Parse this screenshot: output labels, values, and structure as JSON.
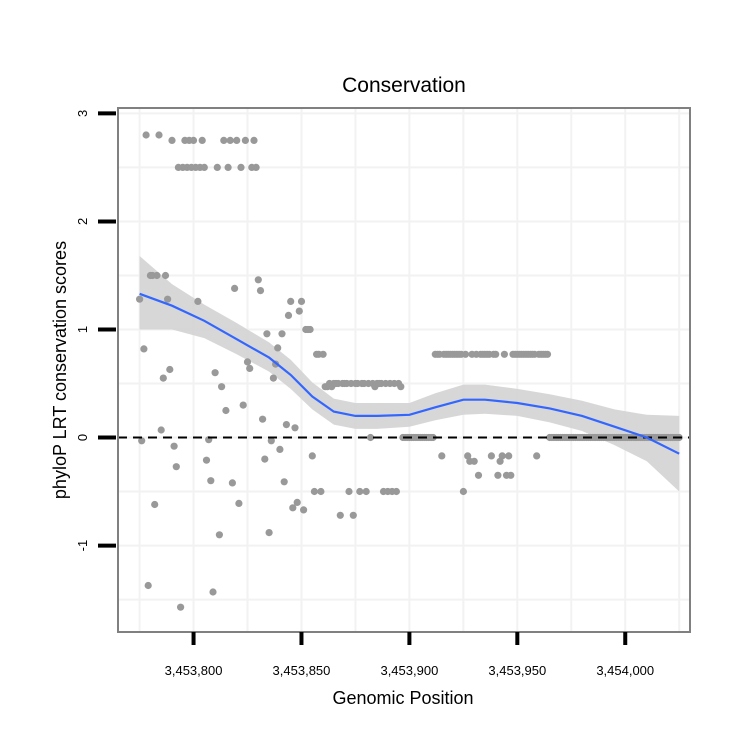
{
  "chart_data": {
    "type": "scatter",
    "title": "Conservation",
    "xlabel": "Genomic Position",
    "ylabel": "phyloP LRT conservation scores",
    "xlim": [
      3453765,
      3454030
    ],
    "ylim": [
      -1.8,
      3.05
    ],
    "x_ticks": [
      3453800,
      3453850,
      3453900,
      3453950,
      3454000
    ],
    "x_tick_labels": [
      "3,453,800",
      "3,453,850",
      "3,453,900",
      "3,453,950",
      "3,454,000"
    ],
    "y_ticks": [
      -1,
      0,
      1,
      2,
      3
    ],
    "y_tick_labels": [
      "-1",
      "0",
      "1",
      "2",
      "3"
    ],
    "reference_line": {
      "y": 0,
      "style": "dashed"
    },
    "colors": {
      "points": "#999999",
      "smooth": "#3366ff",
      "band": "#d3d3d3",
      "frame": "#808080",
      "grid": "#f2f2f2"
    },
    "points": [
      [
        3453775,
        1.28
      ],
      [
        3453776,
        -0.03
      ],
      [
        3453777,
        0.82
      ],
      [
        3453778,
        2.8
      ],
      [
        3453779,
        -1.37
      ],
      [
        3453780,
        1.5
      ],
      [
        3453781,
        1.5
      ],
      [
        3453782,
        -0.62
      ],
      [
        3453783,
        1.5
      ],
      [
        3453784,
        2.8
      ],
      [
        3453785,
        0.07
      ],
      [
        3453786,
        0.55
      ],
      [
        3453787,
        1.5
      ],
      [
        3453788,
        1.28
      ],
      [
        3453789,
        0.63
      ],
      [
        3453790,
        2.75
      ],
      [
        3453791,
        -0.08
      ],
      [
        3453792,
        -0.27
      ],
      [
        3453793,
        2.5
      ],
      [
        3453794,
        -1.57
      ],
      [
        3453795,
        2.5
      ],
      [
        3453796,
        2.75
      ],
      [
        3453797,
        2.5
      ],
      [
        3453798,
        2.75
      ],
      [
        3453799,
        2.5
      ],
      [
        3453800,
        2.75
      ],
      [
        3453801,
        2.5
      ],
      [
        3453802,
        1.26
      ],
      [
        3453803,
        2.5
      ],
      [
        3453804,
        2.75
      ],
      [
        3453805,
        2.5
      ],
      [
        3453806,
        -0.21
      ],
      [
        3453807,
        -0.02
      ],
      [
        3453808,
        -0.4
      ],
      [
        3453809,
        -1.43
      ],
      [
        3453810,
        0.6
      ],
      [
        3453811,
        2.5
      ],
      [
        3453812,
        -0.9
      ],
      [
        3453813,
        0.47
      ],
      [
        3453814,
        2.75
      ],
      [
        3453815,
        0.25
      ],
      [
        3453816,
        2.5
      ],
      [
        3453817,
        2.75
      ],
      [
        3453818,
        -0.42
      ],
      [
        3453819,
        1.38
      ],
      [
        3453820,
        2.75
      ],
      [
        3453821,
        -0.61
      ],
      [
        3453822,
        2.5
      ],
      [
        3453823,
        0.3
      ],
      [
        3453824,
        2.75
      ],
      [
        3453825,
        0.7
      ],
      [
        3453826,
        0.64
      ],
      [
        3453827,
        2.5
      ],
      [
        3453828,
        2.75
      ],
      [
        3453829,
        2.5
      ],
      [
        3453830,
        1.46
      ],
      [
        3453831,
        1.36
      ],
      [
        3453832,
        0.17
      ],
      [
        3453833,
        -0.2
      ],
      [
        3453834,
        0.96
      ],
      [
        3453835,
        -0.88
      ],
      [
        3453836,
        -0.03
      ],
      [
        3453837,
        0.55
      ],
      [
        3453838,
        0.68
      ],
      [
        3453839,
        0.83
      ],
      [
        3453840,
        -0.11
      ],
      [
        3453841,
        0.96
      ],
      [
        3453842,
        -0.41
      ],
      [
        3453843,
        0.12
      ],
      [
        3453844,
        1.13
      ],
      [
        3453845,
        1.26
      ],
      [
        3453846,
        -0.65
      ],
      [
        3453847,
        0.09
      ],
      [
        3453848,
        -0.6
      ],
      [
        3453849,
        1.17
      ],
      [
        3453850,
        1.26
      ],
      [
        3453851,
        -0.67
      ],
      [
        3453852,
        1.0
      ],
      [
        3453853,
        1.0
      ],
      [
        3453854,
        1.0
      ],
      [
        3453855,
        -0.17
      ],
      [
        3453856,
        -0.5
      ],
      [
        3453857,
        0.77
      ],
      [
        3453858,
        0.77
      ],
      [
        3453859,
        -0.5
      ],
      [
        3453860,
        0.77
      ],
      [
        3453861,
        0.47
      ],
      [
        3453862,
        0.47
      ],
      [
        3453863,
        0.5
      ],
      [
        3453864,
        0.47
      ],
      [
        3453865,
        0.5
      ],
      [
        3453866,
        0.5
      ],
      [
        3453867,
        0.5
      ],
      [
        3453868,
        -0.72
      ],
      [
        3453869,
        0.5
      ],
      [
        3453870,
        0.5
      ],
      [
        3453871,
        0.5
      ],
      [
        3453872,
        -0.5
      ],
      [
        3453873,
        0.5
      ],
      [
        3453874,
        -0.72
      ],
      [
        3453875,
        0.5
      ],
      [
        3453876,
        0.5
      ],
      [
        3453877,
        -0.5
      ],
      [
        3453878,
        0.5
      ],
      [
        3453879,
        0.5
      ],
      [
        3453880,
        -0.5
      ],
      [
        3453881,
        0.5
      ],
      [
        3453882,
        0.0
      ],
      [
        3453883,
        0.5
      ],
      [
        3453884,
        0.47
      ],
      [
        3453885,
        0.5
      ],
      [
        3453886,
        0.5
      ],
      [
        3453887,
        0.5
      ],
      [
        3453888,
        -0.5
      ],
      [
        3453889,
        0.5
      ],
      [
        3453890,
        -0.5
      ],
      [
        3453891,
        0.5
      ],
      [
        3453892,
        -0.5
      ],
      [
        3453893,
        0.5
      ],
      [
        3453894,
        -0.5
      ],
      [
        3453895,
        0.5
      ],
      [
        3453896,
        0.47
      ],
      [
        3453897,
        0.0
      ],
      [
        3453898,
        0.0
      ],
      [
        3453899,
        0.0
      ],
      [
        3453900,
        0.0
      ],
      [
        3453901,
        0.0
      ],
      [
        3453902,
        0.0
      ],
      [
        3453903,
        0.0
      ],
      [
        3453904,
        0.0
      ],
      [
        3453905,
        0.0
      ],
      [
        3453906,
        0.0
      ],
      [
        3453907,
        0.0
      ],
      [
        3453908,
        0.0
      ],
      [
        3453909,
        0.0
      ],
      [
        3453910,
        0.0
      ],
      [
        3453911,
        0.0
      ],
      [
        3453912,
        0.77
      ],
      [
        3453913,
        0.77
      ],
      [
        3453914,
        0.77
      ],
      [
        3453915,
        -0.17
      ],
      [
        3453916,
        0.77
      ],
      [
        3453917,
        0.77
      ],
      [
        3453918,
        0.77
      ],
      [
        3453919,
        0.77
      ],
      [
        3453920,
        0.77
      ],
      [
        3453921,
        0.77
      ],
      [
        3453922,
        0.77
      ],
      [
        3453923,
        0.77
      ],
      [
        3453924,
        0.77
      ],
      [
        3453925,
        -0.5
      ],
      [
        3453926,
        0.77
      ],
      [
        3453927,
        -0.17
      ],
      [
        3453928,
        -0.22
      ],
      [
        3453929,
        0.77
      ],
      [
        3453930,
        -0.22
      ],
      [
        3453931,
        0.77
      ],
      [
        3453932,
        -0.35
      ],
      [
        3453933,
        0.77
      ],
      [
        3453934,
        0.77
      ],
      [
        3453935,
        0.77
      ],
      [
        3453936,
        0.77
      ],
      [
        3453937,
        0.77
      ],
      [
        3453938,
        -0.17
      ],
      [
        3453939,
        0.77
      ],
      [
        3453940,
        0.77
      ],
      [
        3453941,
        -0.35
      ],
      [
        3453942,
        -0.22
      ],
      [
        3453943,
        -0.17
      ],
      [
        3453944,
        0.77
      ],
      [
        3453945,
        -0.35
      ],
      [
        3453946,
        -0.17
      ],
      [
        3453947,
        -0.35
      ],
      [
        3453948,
        0.77
      ],
      [
        3453949,
        0.77
      ],
      [
        3453950,
        0.77
      ],
      [
        3453951,
        0.77
      ],
      [
        3453952,
        0.77
      ],
      [
        3453953,
        0.77
      ],
      [
        3453954,
        0.77
      ],
      [
        3453955,
        0.77
      ],
      [
        3453956,
        0.77
      ],
      [
        3453957,
        0.77
      ],
      [
        3453958,
        0.77
      ],
      [
        3453959,
        -0.17
      ],
      [
        3453960,
        0.77
      ],
      [
        3453961,
        0.77
      ],
      [
        3453962,
        0.77
      ],
      [
        3453963,
        0.77
      ],
      [
        3453964,
        0.77
      ],
      [
        3453965,
        0.0
      ],
      [
        3453966,
        0.0
      ],
      [
        3453967,
        0.0
      ],
      [
        3453968,
        0.0
      ],
      [
        3453969,
        0.0
      ],
      [
        3453970,
        0.0
      ],
      [
        3453971,
        0.0
      ],
      [
        3453972,
        0.0
      ],
      [
        3453973,
        0.0
      ],
      [
        3453974,
        0.0
      ],
      [
        3453975,
        0.0
      ],
      [
        3453976,
        0.0
      ],
      [
        3453977,
        0.0
      ],
      [
        3453978,
        0.0
      ],
      [
        3453979,
        0.0
      ],
      [
        3453980,
        0.0
      ],
      [
        3453981,
        0.0
      ],
      [
        3453982,
        0.0
      ],
      [
        3453983,
        0.0
      ],
      [
        3453984,
        0.0
      ],
      [
        3453985,
        0.0
      ],
      [
        3453986,
        0.0
      ],
      [
        3453987,
        0.0
      ],
      [
        3453988,
        0.0
      ],
      [
        3453989,
        0.0
      ],
      [
        3453990,
        0.0
      ],
      [
        3453991,
        0.0
      ],
      [
        3453992,
        0.0
      ],
      [
        3453993,
        0.0
      ],
      [
        3453994,
        0.0
      ],
      [
        3453995,
        0.0
      ],
      [
        3453996,
        0.0
      ],
      [
        3453997,
        0.0
      ],
      [
        3453998,
        0.0
      ],
      [
        3453999,
        0.0
      ],
      [
        3454000,
        0.0
      ],
      [
        3454001,
        0.0
      ],
      [
        3454002,
        0.0
      ],
      [
        3454003,
        0.0
      ],
      [
        3454004,
        0.0
      ],
      [
        3454005,
        0.0
      ],
      [
        3454006,
        0.0
      ],
      [
        3454007,
        0.0
      ],
      [
        3454008,
        0.0
      ],
      [
        3454009,
        0.0
      ],
      [
        3454010,
        0.0
      ],
      [
        3454011,
        0.0
      ],
      [
        3454012,
        0.0
      ],
      [
        3454013,
        0.0
      ],
      [
        3454014,
        0.0
      ],
      [
        3454015,
        0.0
      ],
      [
        3454016,
        0.0
      ],
      [
        3454017,
        0.0
      ],
      [
        3454018,
        0.0
      ],
      [
        3454019,
        0.0
      ],
      [
        3454020,
        0.0
      ],
      [
        3454021,
        0.0
      ],
      [
        3454022,
        0.0
      ],
      [
        3454023,
        0.0
      ],
      [
        3454024,
        0.0
      ],
      [
        3454025,
        0.0
      ]
    ],
    "smooth_line": [
      [
        3453775,
        1.33
      ],
      [
        3453790,
        1.22
      ],
      [
        3453805,
        1.08
      ],
      [
        3453820,
        0.91
      ],
      [
        3453835,
        0.74
      ],
      [
        3453845,
        0.58
      ],
      [
        3453855,
        0.38
      ],
      [
        3453865,
        0.24
      ],
      [
        3453875,
        0.2
      ],
      [
        3453885,
        0.2
      ],
      [
        3453900,
        0.21
      ],
      [
        3453912,
        0.28
      ],
      [
        3453925,
        0.35
      ],
      [
        3453935,
        0.35
      ],
      [
        3453950,
        0.32
      ],
      [
        3453965,
        0.27
      ],
      [
        3453980,
        0.2
      ],
      [
        3453995,
        0.1
      ],
      [
        3454010,
        0.0
      ],
      [
        3454025,
        -0.15
      ]
    ],
    "confidence_band": [
      [
        3453775,
        1.0,
        1.68
      ],
      [
        3453790,
        1.0,
        1.42
      ],
      [
        3453805,
        0.92,
        1.23
      ],
      [
        3453820,
        0.77,
        1.06
      ],
      [
        3453835,
        0.61,
        0.88
      ],
      [
        3453845,
        0.45,
        0.72
      ],
      [
        3453855,
        0.26,
        0.51
      ],
      [
        3453865,
        0.12,
        0.36
      ],
      [
        3453875,
        0.08,
        0.32
      ],
      [
        3453885,
        0.08,
        0.32
      ],
      [
        3453900,
        0.1,
        0.32
      ],
      [
        3453912,
        0.16,
        0.41
      ],
      [
        3453925,
        0.21,
        0.49
      ],
      [
        3453935,
        0.22,
        0.49
      ],
      [
        3453950,
        0.2,
        0.45
      ],
      [
        3453965,
        0.14,
        0.4
      ],
      [
        3453980,
        0.06,
        0.34
      ],
      [
        3453995,
        -0.07,
        0.26
      ],
      [
        3454010,
        -0.22,
        0.21
      ],
      [
        3454025,
        -0.5,
        0.2
      ]
    ]
  }
}
